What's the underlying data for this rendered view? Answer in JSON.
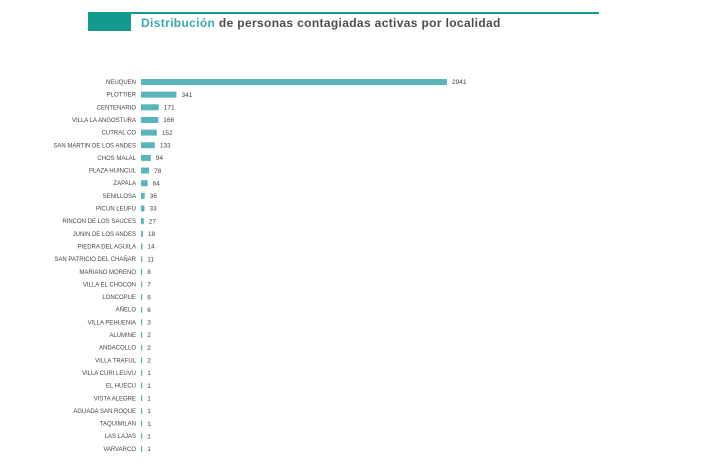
{
  "header": {
    "title_highlight": "Distribución",
    "title_rest": " de personas contagiadas activas por localidad"
  },
  "colors": {
    "accent": "#139a8e",
    "bar": "#5ab4bc",
    "label": "#444444"
  },
  "chart_data": {
    "type": "bar",
    "orientation": "horizontal",
    "title": "Distribución de personas contagiadas activas por localidad",
    "xlabel": "",
    "ylabel": "",
    "xlim": [
      0,
      2941
    ],
    "grid": false,
    "categories": [
      "NEUQUEN",
      "PLOTTIER",
      "CENTENARIO",
      "VILLA LA ANGOSTURA",
      "CUTRAL CO",
      "SAN MARTIN DE LOS ANDES",
      "CHOS MALAL",
      "PLAZA HUINCUL",
      "ZAPALA",
      "SENILLOSA",
      "PICUN LEUFU",
      "RINCON DE LOS SAUCES",
      "JUNIN DE LOS ANDES",
      "PIEDRA DEL AGUILA",
      "SAN PATRICIO DEL CHAÑAR",
      "MARIANO MORENO",
      "VILLA EL CHOCON",
      "LONCOPUE",
      "AÑELO",
      "VILLA PEHUENIA",
      "ALUMINE",
      "ANDACOLLO",
      "VILLA TRAFUL",
      "VILLA CURI LEUVU",
      "EL HUECU",
      "VISTA ALEGRE",
      "AGUADA SAN ROQUE",
      "TAQUIMILAN",
      "LAS LAJAS",
      "VARVARCO"
    ],
    "values": [
      2941,
      341,
      171,
      166,
      152,
      133,
      94,
      78,
      64,
      36,
      33,
      27,
      18,
      14,
      11,
      8,
      7,
      6,
      6,
      3,
      2,
      2,
      2,
      1,
      1,
      1,
      1,
      1,
      1,
      1
    ]
  }
}
